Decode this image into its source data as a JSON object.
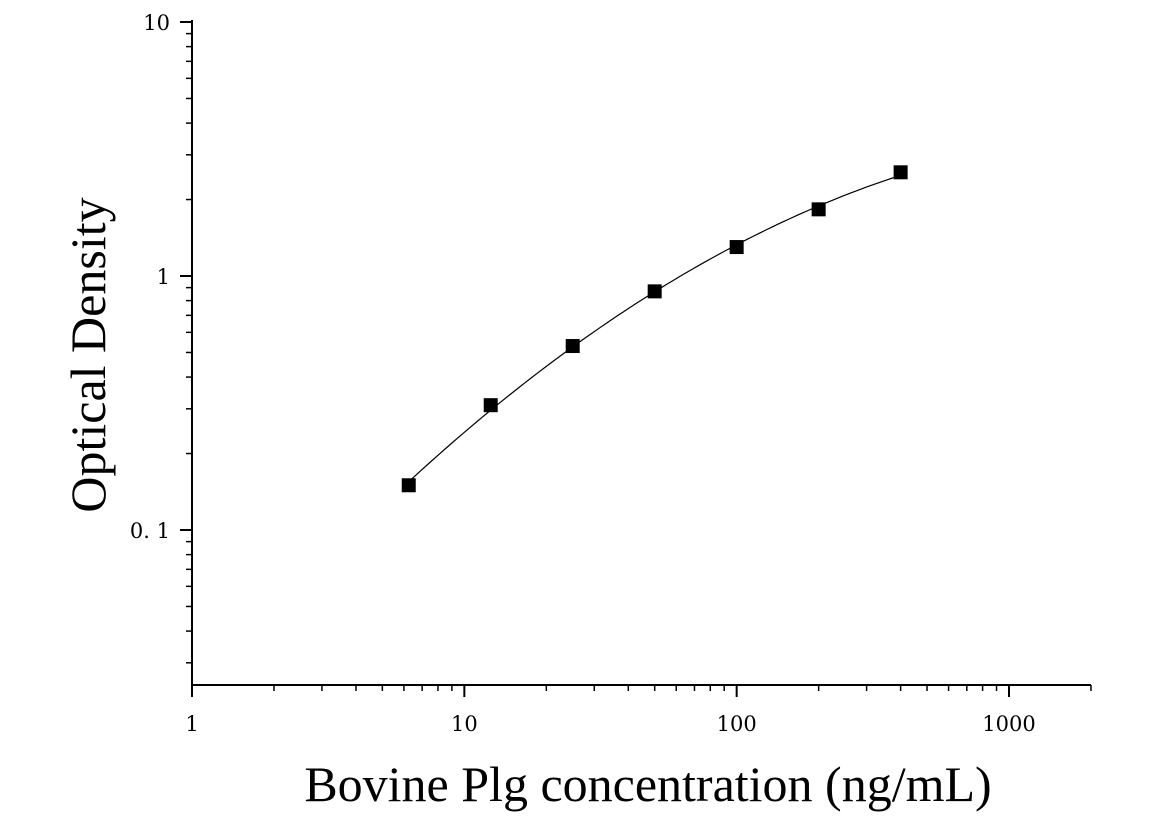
{
  "chart_data": {
    "type": "scatter",
    "title": "",
    "xlabel": "Bovine Plg concentration (ng/mL)",
    "ylabel": "Optical Density",
    "x_scale": "log",
    "y_scale": "log",
    "xlim": [
      1,
      2000
    ],
    "ylim": [
      0.027,
      10
    ],
    "x_ticks": [
      {
        "value": 1,
        "label": "1"
      },
      {
        "value": 10,
        "label": "10"
      },
      {
        "value": 100,
        "label": "100"
      },
      {
        "value": 1000,
        "label": "1000"
      }
    ],
    "y_ticks": [
      {
        "value": 0.1,
        "label": "0. 1"
      },
      {
        "value": 1,
        "label": "1"
      },
      {
        "value": 10,
        "label": "10"
      }
    ],
    "grid": false,
    "series": [
      {
        "marker": "square",
        "color": "#000000",
        "fit_curve": true,
        "x": [
          6.25,
          12.5,
          25,
          50,
          100,
          200,
          400
        ],
        "y": [
          0.15,
          0.31,
          0.53,
          0.87,
          1.3,
          1.83,
          2.56
        ]
      }
    ]
  }
}
